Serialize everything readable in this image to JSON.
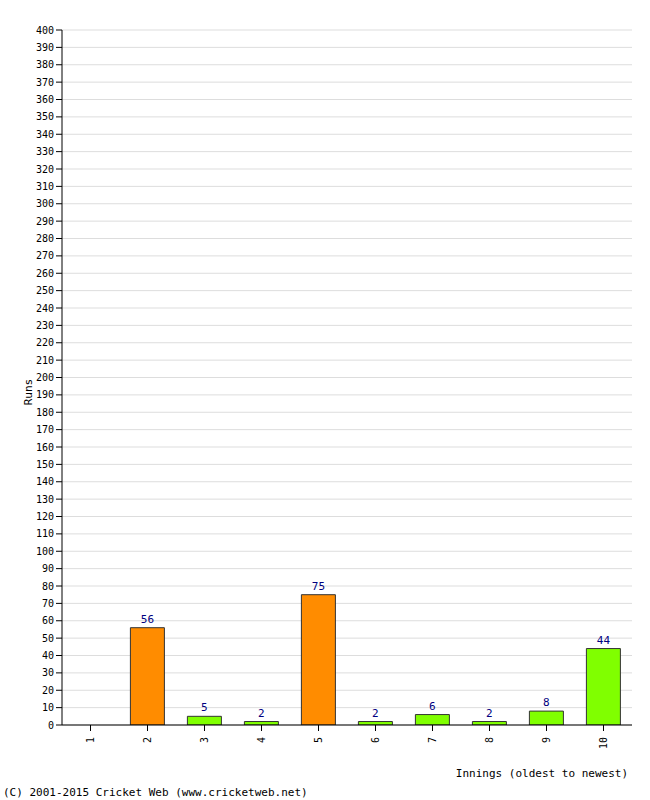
{
  "chart_data": {
    "type": "bar",
    "categories": [
      "1",
      "2",
      "3",
      "4",
      "5",
      "6",
      "7",
      "8",
      "9",
      "10"
    ],
    "values": [
      0,
      56,
      5,
      2,
      75,
      2,
      6,
      2,
      8,
      44
    ],
    "colors": [
      "#80ff00",
      "#ff8c00",
      "#80ff00",
      "#80ff00",
      "#ff8c00",
      "#80ff00",
      "#80ff00",
      "#80ff00",
      "#80ff00",
      "#80ff00"
    ],
    "ylim": [
      0,
      400
    ],
    "yticks": [
      0,
      10,
      20,
      30,
      40,
      50,
      60,
      70,
      80,
      90,
      100,
      110,
      120,
      130,
      140,
      150,
      160,
      170,
      180,
      190,
      200,
      210,
      220,
      230,
      240,
      250,
      260,
      270,
      280,
      290,
      300,
      310,
      320,
      330,
      340,
      350,
      360,
      370,
      380,
      390,
      400
    ],
    "grid": true,
    "data_labels": true,
    "x_label": "Innings (oldest to newest)",
    "y_label": "Runs",
    "annotations": [
      "(C) 2001-2015 Cricket Web (www.cricketweb.net)"
    ]
  }
}
